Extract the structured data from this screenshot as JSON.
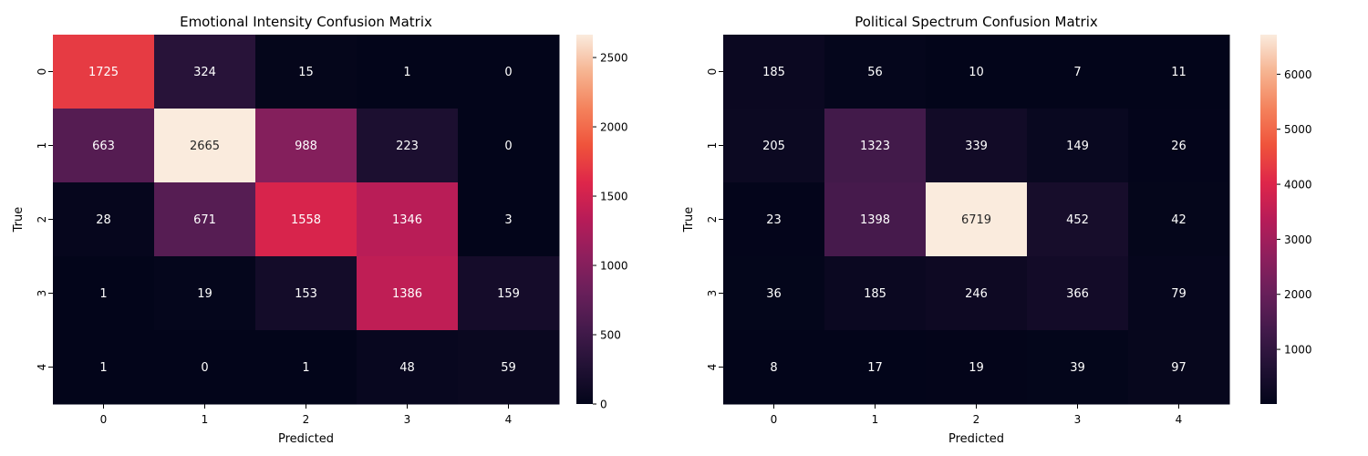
{
  "chart_data": [
    {
      "type": "heatmap",
      "title": "Emotional Intensity Confusion Matrix",
      "xlabel": "Predicted",
      "ylabel": "True",
      "x_categories": [
        "0",
        "1",
        "2",
        "3",
        "4"
      ],
      "y_categories": [
        "0",
        "1",
        "2",
        "3",
        "4"
      ],
      "values": [
        [
          1725,
          324,
          15,
          1,
          0
        ],
        [
          663,
          2665,
          988,
          223,
          0
        ],
        [
          28,
          671,
          1558,
          1346,
          3
        ],
        [
          1,
          19,
          153,
          1386,
          159
        ],
        [
          1,
          0,
          1,
          48,
          59
        ]
      ],
      "colorbar": {
        "min": 0,
        "max": 2665,
        "ticks": [
          0,
          500,
          1000,
          1500,
          2000,
          2500
        ]
      },
      "colormap": "rocket"
    },
    {
      "type": "heatmap",
      "title": "Political Spectrum Confusion Matrix",
      "xlabel": "Predicted",
      "ylabel": "True",
      "x_categories": [
        "0",
        "1",
        "2",
        "3",
        "4"
      ],
      "y_categories": [
        "0",
        "1",
        "2",
        "3",
        "4"
      ],
      "values": [
        [
          185,
          56,
          10,
          7,
          11
        ],
        [
          205,
          1323,
          339,
          149,
          26
        ],
        [
          23,
          1398,
          6719,
          452,
          42
        ],
        [
          36,
          185,
          246,
          366,
          79
        ],
        [
          8,
          17,
          19,
          39,
          97
        ]
      ],
      "colorbar": {
        "min": 7,
        "max": 6719,
        "ticks": [
          1000,
          2000,
          3000,
          4000,
          5000,
          6000
        ]
      },
      "colormap": "rocket"
    }
  ]
}
